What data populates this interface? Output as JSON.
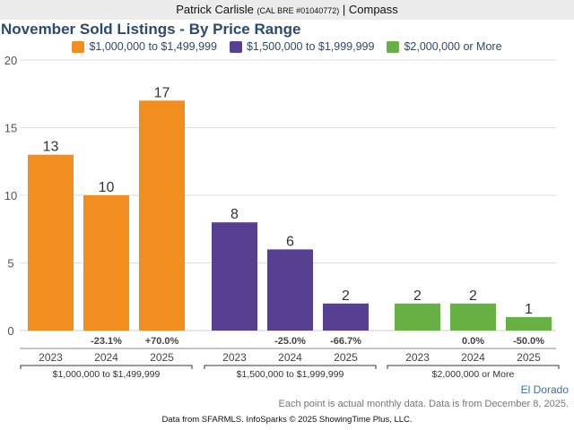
{
  "header": {
    "agent": "Patrick Carlisle",
    "license": "(CAL BRE #01040772)",
    "separator": "|",
    "brokerage": "Compass"
  },
  "region": "El Dorado",
  "note": "Each point is actual monthly data. Data is from December 8, 2025.",
  "footer": "Data from SFARMLS. InfoSparks © 2025 ShowingTime Plus, LLC.",
  "chart_data": {
    "type": "bar",
    "title": "November Sold Listings - By Price Range",
    "xlabel": "",
    "ylabel": "",
    "ylim": [
      0,
      20
    ],
    "yticks": [
      0,
      5,
      10,
      15,
      20
    ],
    "grid": true,
    "legend_position": "top",
    "groups": [
      {
        "name": "$1,000,000 to $1,499,999",
        "color": "#f28e1f",
        "categories": [
          "2023",
          "2024",
          "2025"
        ],
        "values": [
          13,
          10,
          17
        ],
        "changes": [
          "",
          "-23.1%",
          "+70.0%"
        ]
      },
      {
        "name": "$1,500,000 to $1,999,999",
        "color": "#573f91",
        "categories": [
          "2023",
          "2024",
          "2025"
        ],
        "values": [
          8,
          6,
          2
        ],
        "changes": [
          "",
          "-25.0%",
          "-66.7%"
        ]
      },
      {
        "name": "$2,000,000 or More",
        "color": "#67b044",
        "categories": [
          "2023",
          "2024",
          "2025"
        ],
        "values": [
          2,
          2,
          1
        ],
        "changes": [
          "",
          "0.0%",
          "-50.0%"
        ]
      }
    ]
  }
}
